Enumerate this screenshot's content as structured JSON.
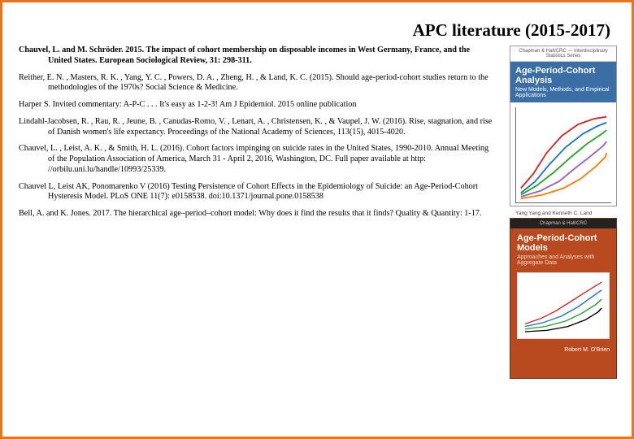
{
  "title": "APC literature (2015-2017)",
  "references": [
    "Chauvel, L. and M. Schröder. 2015. The impact of cohort membership on disposable incomes in West Germany, France, and the United States. European Sociological Review, 31: 298-311.",
    "Reither, E. N. , Masters, R. K. , Yang, Y. C. , Powers, D. A. , Zheng, H. , & Land, K. C. (2015). Should age-period-cohort studies return to the methodologies of the 1970s? Social Science & Medicine.",
    "Harper S. Invited commentary: A-P-C . . . It's easy as 1-2-3! Am J Epidemiol. 2015 online publication",
    "Lindahl-Jacobsen, R. , Rau, R. , Jeune, B. , Canudas-Romo, V. , Lenart, A. , Christensen, K. , & Vaupel, J. W. (2016). Rise, stagnation, and rise of Danish women's life expectancy. Proceedings of the National Academy of Sciences, 113(15), 4015-4020.",
    "Chauvel, L. , Leist, A. K. , & Smith, H. L. (2016). Cohort factors impinging on suicide rates in the United States, 1990-2010. Annual Meeting of the Population Association of America, March 31 - April 2, 2016, Washington, DC. Full paper available at http: //orbilu.uni.lu/handle/10993/25339.",
    "Chauvel L, Leist AK, Ponomarenko V (2016) Testing Persistence of Cohort Effects in the Epidemiology of Suicide: an Age-Period-Cohort Hysteresis Model. PLoS ONE 11(7): e0158538. doi:10.1371/journal.pone.0158538",
    "Bell, A. and K. Jones. 2017. The hierarchical age–period–cohort model: Why does it find the results that it finds? Quality & Quantity: 1-17."
  ],
  "book1": {
    "series": "Chapman & Hall/CRC — Interdisciplinary Statistics Series",
    "title": "Age-Period-Cohort Analysis",
    "subtitle": "New Models, Methods, and Empirical Applications",
    "authors": "Yang Yang and Kenneth C. Land",
    "chart": {
      "lines": [
        {
          "color": "#d62728",
          "points": [
            [
              5,
              85
            ],
            [
              18,
              70
            ],
            [
              32,
              48
            ],
            [
              48,
              30
            ],
            [
              65,
              18
            ],
            [
              82,
              12
            ],
            [
              95,
              10
            ]
          ]
        },
        {
          "color": "#1f77b4",
          "points": [
            [
              5,
              90
            ],
            [
              20,
              78
            ],
            [
              35,
              60
            ],
            [
              52,
              42
            ],
            [
              70,
              28
            ],
            [
              85,
              20
            ],
            [
              95,
              16
            ]
          ]
        },
        {
          "color": "#2ca02c",
          "points": [
            [
              5,
              92
            ],
            [
              22,
              82
            ],
            [
              40,
              68
            ],
            [
              58,
              52
            ],
            [
              75,
              38
            ],
            [
              90,
              28
            ],
            [
              95,
              24
            ]
          ]
        },
        {
          "color": "#9467bd",
          "points": [
            [
              5,
              94
            ],
            [
              25,
              88
            ],
            [
              45,
              78
            ],
            [
              62,
              64
            ],
            [
              80,
              50
            ],
            [
              92,
              40
            ],
            [
              95,
              36
            ]
          ]
        },
        {
          "color": "#ff7f0e",
          "points": [
            [
              5,
              96
            ],
            [
              28,
              92
            ],
            [
              50,
              85
            ],
            [
              68,
              75
            ],
            [
              84,
              62
            ],
            [
              94,
              52
            ],
            [
              95,
              48
            ]
          ]
        }
      ]
    }
  },
  "book2": {
    "series": "Chapman & Hall/CRC",
    "title": "Age-Period-Cohort Models",
    "subtitle": "Approaches and Analyses with Aggregate Data",
    "author": "Robert M. O'Brien",
    "chart": {
      "lines": [
        {
          "color": "#d62728",
          "points": [
            [
              8,
              78
            ],
            [
              25,
              70
            ],
            [
              42,
              58
            ],
            [
              60,
              42
            ],
            [
              78,
              26
            ],
            [
              92,
              14
            ]
          ]
        },
        {
          "color": "#1f77b4",
          "points": [
            [
              8,
              82
            ],
            [
              28,
              76
            ],
            [
              48,
              66
            ],
            [
              66,
              52
            ],
            [
              82,
              36
            ],
            [
              92,
              26
            ]
          ]
        },
        {
          "color": "#2ca02c",
          "points": [
            [
              8,
              86
            ],
            [
              30,
              82
            ],
            [
              52,
              74
            ],
            [
              70,
              62
            ],
            [
              86,
              48
            ],
            [
              92,
              40
            ]
          ]
        },
        {
          "color": "#000000",
          "points": [
            [
              8,
              90
            ],
            [
              32,
              88
            ],
            [
              55,
              82
            ],
            [
              74,
              72
            ],
            [
              88,
              60
            ],
            [
              92,
              54
            ]
          ]
        }
      ]
    }
  }
}
